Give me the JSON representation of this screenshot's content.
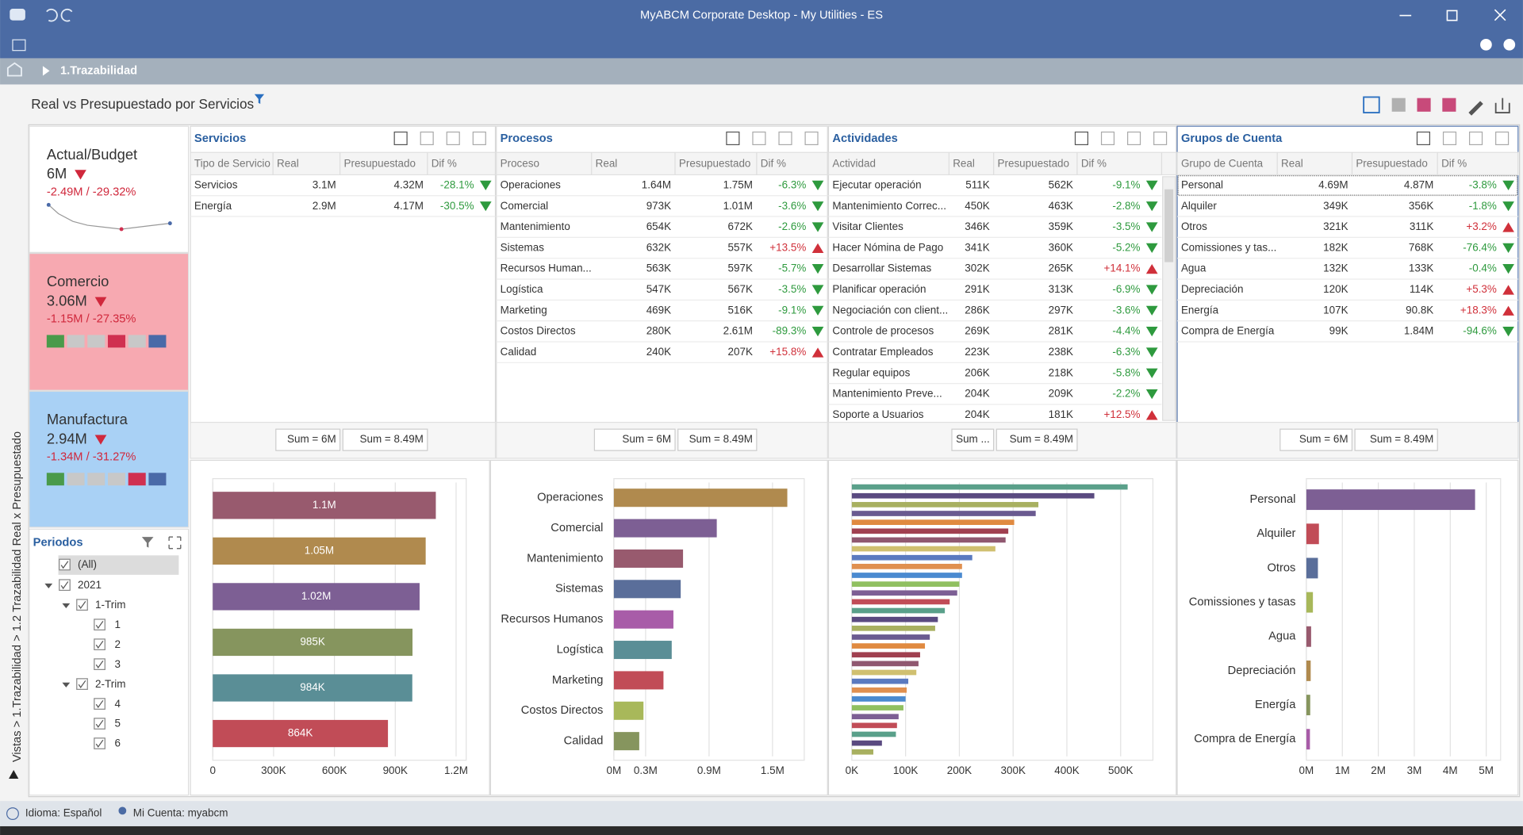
{
  "window": {
    "title": "MyABCM Corporate Desktop - My Utilities - ES"
  },
  "breadcrumb": "1.Trazabilidad",
  "dashboard_title": "Real vs Presupuestado por Servicios",
  "side_path": "Vistas > 1.Trazabilidad > 1.2 Trazabilidad Real x Presupuestado",
  "cards": [
    {
      "title": "Actual/Budget",
      "value": "6M",
      "delta": "-2.49M  /  -29.32%"
    },
    {
      "title": "Comercio",
      "value": "3.06M",
      "delta": "-1.15M  /  -27.35%"
    },
    {
      "title": "Manufactura",
      "value": "2.94M",
      "delta": "-1.34M  /  -31.27%"
    }
  ],
  "periods": {
    "title": "Periodos",
    "all": "(All)",
    "years": [
      {
        "label": "2021",
        "quarters": [
          {
            "label": "1-Trim",
            "months": [
              "1",
              "2",
              "3"
            ]
          },
          {
            "label": "2-Trim",
            "months": [
              "4",
              "5",
              "6"
            ]
          }
        ]
      }
    ]
  },
  "tables": [
    {
      "title": "Servicios",
      "columns": [
        "Tipo de Servicio",
        "Real",
        "Presupuestado",
        "Dif %"
      ],
      "rows": [
        [
          "Servicios",
          "3.1M",
          "4.32M",
          "-28.1%"
        ],
        [
          "Energía",
          "2.9M",
          "4.17M",
          "-30.5%"
        ]
      ],
      "totals": [
        "Sum = 6M",
        "Sum = 8.49M"
      ]
    },
    {
      "title": "Procesos",
      "columns": [
        "Proceso",
        "Real",
        "Presupuestado",
        "Dif %"
      ],
      "rows": [
        [
          "Operaciones",
          "1.64M",
          "1.75M",
          "-6.3%"
        ],
        [
          "Comercial",
          "973K",
          "1.01M",
          "-3.6%"
        ],
        [
          "Mantenimiento",
          "654K",
          "672K",
          "-2.6%"
        ],
        [
          "Sistemas",
          "632K",
          "557K",
          "+13.5%"
        ],
        [
          "Recursos Human...",
          "563K",
          "597K",
          "-5.7%"
        ],
        [
          "Logística",
          "547K",
          "567K",
          "-3.5%"
        ],
        [
          "Marketing",
          "469K",
          "516K",
          "-9.1%"
        ],
        [
          "Costos Directos",
          "280K",
          "2.61M",
          "-89.3%"
        ],
        [
          "Calidad",
          "240K",
          "207K",
          "+15.8%"
        ]
      ],
      "totals": [
        "Sum = 6M",
        "Sum = 8.49M"
      ]
    },
    {
      "title": "Actividades",
      "columns": [
        "Actividad",
        "Real",
        "Presupuestado",
        "Dif %"
      ],
      "rows": [
        [
          "Ejecutar operación",
          "511K",
          "562K",
          "-9.1%"
        ],
        [
          "Mantenimiento Correc...",
          "450K",
          "463K",
          "-2.8%"
        ],
        [
          "Visitar Clientes",
          "346K",
          "359K",
          "-3.5%"
        ],
        [
          "Hacer Nómina de Pago",
          "341K",
          "360K",
          "-5.2%"
        ],
        [
          "Desarrollar Sistemas",
          "302K",
          "265K",
          "+14.1%"
        ],
        [
          "Planificar operación",
          "291K",
          "313K",
          "-6.9%"
        ],
        [
          "Negociación con client...",
          "286K",
          "297K",
          "-3.6%"
        ],
        [
          "Controle de procesos",
          "269K",
          "281K",
          "-4.4%"
        ],
        [
          "Contratar Empleados",
          "223K",
          "238K",
          "-6.3%"
        ],
        [
          "Regular equipos",
          "206K",
          "218K",
          "-5.8%"
        ],
        [
          "Mantenimiento Preve...",
          "204K",
          "209K",
          "-2.2%"
        ],
        [
          "Soporte a Usuarios",
          "204K",
          "181K",
          "+12.5%"
        ]
      ],
      "totals": [
        "Sum ...",
        "Sum = 8.49M"
      ]
    },
    {
      "title": "Grupos de Cuenta",
      "columns": [
        "Grupo de Cuenta",
        "Real",
        "Presupuestado",
        "Dif %"
      ],
      "rows": [
        [
          "Personal",
          "4.69M",
          "4.87M",
          "-3.8%"
        ],
        [
          "Alquiler",
          "349K",
          "356K",
          "-1.8%"
        ],
        [
          "Otros",
          "321K",
          "311K",
          "+3.2%"
        ],
        [
          "Comissiones y tas...",
          "182K",
          "768K",
          "-76.4%"
        ],
        [
          "Agua",
          "132K",
          "133K",
          "-0.4%"
        ],
        [
          "Depreciación",
          "120K",
          "114K",
          "+5.3%"
        ],
        [
          "Energía",
          "107K",
          "90.8K",
          "+18.3%"
        ],
        [
          "Compra de Energía",
          "99K",
          "1.84M",
          "-94.6%"
        ]
      ],
      "totals": [
        "Sum = 6M",
        "Sum = 8.49M"
      ]
    }
  ],
  "chart_data": [
    {
      "type": "hbar",
      "values": [
        1100000,
        1050000,
        1020000,
        985000,
        984000,
        864000
      ],
      "value_labels": [
        "1.1M",
        "1.05M",
        "1.02M",
        "985K",
        "984K",
        "864K"
      ],
      "colors": [
        "#985a6e",
        "#b08a4e",
        "#7d5f94",
        "#86955e",
        "#5a8e96",
        "#c14c57"
      ],
      "xlim": [
        0,
        1250000
      ],
      "xticks": [
        0,
        {
          "value": 300000,
          "label": "300K"
        },
        {
          "value": 600000,
          "label": "600K"
        },
        {
          "value": 900000,
          "label": "900K"
        },
        {
          "value": 1200000,
          "label": "1.2M"
        }
      ],
      "grid": true
    },
    {
      "type": "hbar",
      "categories": [
        "Operaciones",
        "Comercial",
        "Mantenimiento",
        "Sistemas",
        "Recursos Humanos",
        "Logística",
        "Marketing",
        "Costos Directos",
        "Calidad"
      ],
      "values": [
        1640000,
        973000,
        654000,
        632000,
        563000,
        547000,
        469000,
        280000,
        240000
      ],
      "colors": [
        "#b08a4e",
        "#7d5f94",
        "#985a6e",
        "#5a6e9a",
        "#a85ca8",
        "#5a8e96",
        "#c14c57",
        "#a8b85a",
        "#86955e"
      ],
      "xlim": [
        0,
        1800000
      ],
      "xticks": [
        {
          "value": 0,
          "label": "0M"
        },
        {
          "value": 300000,
          "label": "0.3M"
        },
        {
          "value": 900000,
          "label": "0.9M"
        },
        {
          "value": 1500000,
          "label": "1.5M"
        }
      ],
      "grid": true
    },
    {
      "type": "hbar",
      "values": [
        513000,
        451000,
        347000,
        342000,
        302000,
        291000,
        286000,
        267000,
        224000,
        205000,
        205000,
        200000,
        196000,
        182000,
        173000,
        160000,
        155000,
        145000,
        136000,
        127000,
        124000,
        120000,
        105000,
        102000,
        100000,
        96000,
        87000,
        84000,
        82000,
        56000,
        40000
      ],
      "colors": [
        "#5aa08a",
        "#5a4a80",
        "#a8b060",
        "#6a5a90",
        "#e08a40",
        "#a04050",
        "#905870",
        "#d0c070",
        "#5a7ac0",
        "#e09050",
        "#4a8ad0",
        "#90c060",
        "#7d5f94",
        "#c14c57"
      ],
      "xlim": [
        0,
        560000
      ],
      "xticks": [
        {
          "value": 0,
          "label": "0K"
        },
        {
          "value": 100000,
          "label": "100K"
        },
        {
          "value": 200000,
          "label": "200K"
        },
        {
          "value": 300000,
          "label": "300K"
        },
        {
          "value": 400000,
          "label": "400K"
        },
        {
          "value": 500000,
          "label": "500K"
        }
      ],
      "grid": true
    },
    {
      "type": "hbar",
      "categories": [
        "Personal",
        "Alquiler",
        "Otros",
        "Comissiones y tasas",
        "Agua",
        "Depreciación",
        "Energía",
        "Compra de Energía"
      ],
      "values": [
        4690000,
        349000,
        321000,
        182000,
        132000,
        120000,
        107000,
        99000
      ],
      "colors": [
        "#7d5f94",
        "#c14c57",
        "#5a6e9a",
        "#a8b85a",
        "#985a6e",
        "#b08a4e",
        "#86955e",
        "#a85ca8"
      ],
      "xlim": [
        0,
        5400000
      ],
      "xticks": [
        {
          "value": 0,
          "label": "0M"
        },
        {
          "value": 1000000,
          "label": "1M"
        },
        {
          "value": 2000000,
          "label": "2M"
        },
        {
          "value": 3000000,
          "label": "3M"
        },
        {
          "value": 4000000,
          "label": "4M"
        },
        {
          "value": 5000000,
          "label": "5M"
        }
      ],
      "grid": true
    }
  ],
  "status": {
    "language": "Idioma: Español",
    "account": "Mi Cuenta: myabcm"
  }
}
